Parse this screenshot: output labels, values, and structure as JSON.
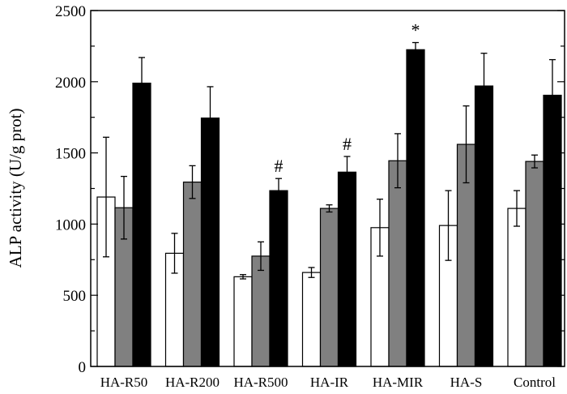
{
  "chart_data": {
    "type": "bar",
    "ylabel": "ALP activity (U/g prot)",
    "ylim": [
      0,
      2500
    ],
    "yticks": [
      0,
      500,
      1000,
      1500,
      2000,
      2500
    ],
    "categories": [
      "HA-R50",
      "HA-R200",
      "HA-R500",
      "HA-IR",
      "HA-MIR",
      "HA-S",
      "Control"
    ],
    "series": [
      {
        "color": "#ffffff",
        "values": [
          1190,
          795,
          630,
          660,
          975,
          990,
          1110
        ],
        "errors": [
          420,
          140,
          15,
          35,
          200,
          245,
          125
        ]
      },
      {
        "color": "#808080",
        "values": [
          1115,
          1295,
          775,
          1110,
          1445,
          1560,
          1440
        ],
        "errors": [
          220,
          115,
          100,
          25,
          190,
          270,
          45
        ]
      },
      {
        "color": "#000000",
        "values": [
          1990,
          1745,
          1235,
          1365,
          2225,
          1970,
          1905
        ],
        "errors": [
          180,
          220,
          85,
          110,
          50,
          230,
          250
        ]
      }
    ],
    "annotations": [
      {
        "category_index": 2,
        "series_index": 2,
        "text": "#"
      },
      {
        "category_index": 3,
        "series_index": 2,
        "text": "#"
      },
      {
        "category_index": 4,
        "series_index": 2,
        "text": "*"
      }
    ],
    "legend": "none",
    "grid": false
  }
}
